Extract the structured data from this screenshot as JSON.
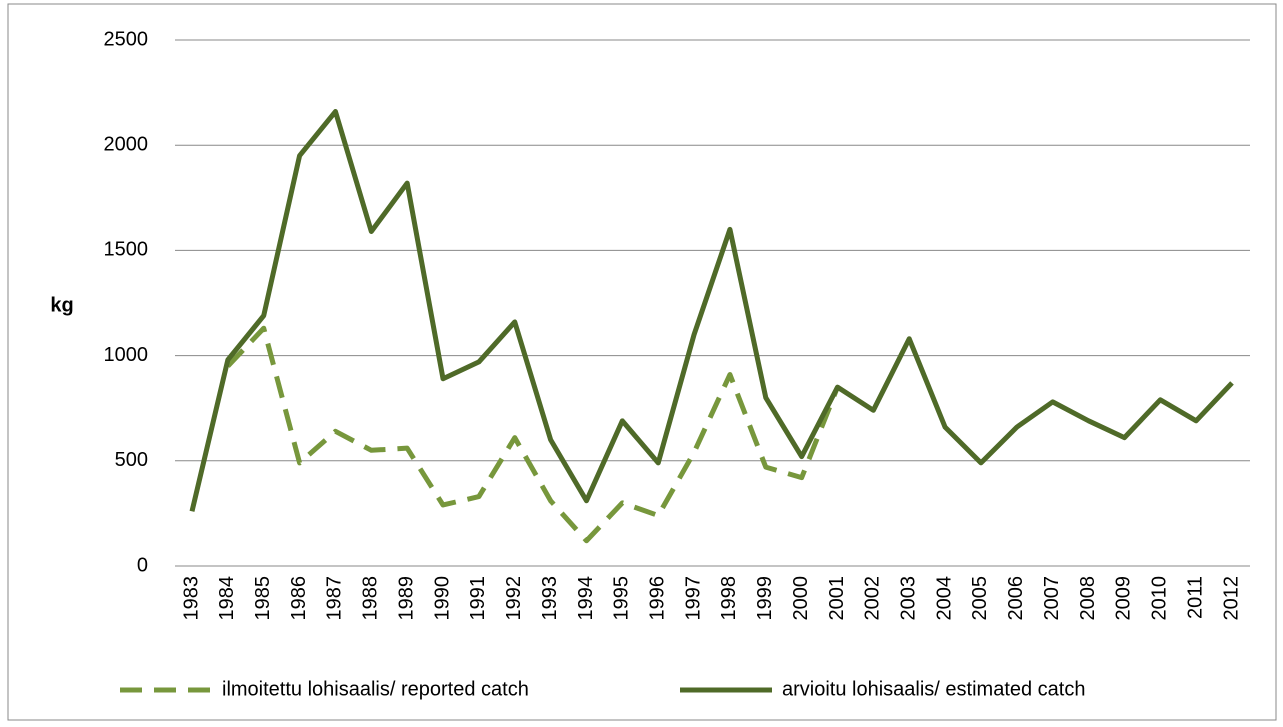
{
  "chart_data": {
    "type": "line",
    "y_label": "kg",
    "x": [
      "1983",
      "1984",
      "1985",
      "1986",
      "1987",
      "1988",
      "1989",
      "1990",
      "1991",
      "1992",
      "1993",
      "1994",
      "1995",
      "1996",
      "1997",
      "1998",
      "1999",
      "2000",
      "2001",
      "2002",
      "2003",
      "2004",
      "2005",
      "2006",
      "2007",
      "2008",
      "2009",
      "2010",
      "2011",
      "2012"
    ],
    "series": [
      {
        "name": "ilmoitettu lohisaalis/ reported catch",
        "color": "#77973c",
        "dash": true,
        "values": [
          null,
          950,
          1130,
          490,
          640,
          550,
          560,
          290,
          330,
          610,
          310,
          120,
          300,
          240,
          540,
          910,
          470,
          420,
          850,
          null,
          null,
          null,
          null,
          null,
          null,
          null,
          null,
          null,
          null,
          null
        ]
      },
      {
        "name": "arvioitu lohisaalis/ estimated catch",
        "color": "#4f6a28",
        "dash": false,
        "values": [
          260,
          980,
          1190,
          1950,
          2160,
          1590,
          1820,
          890,
          970,
          1160,
          600,
          310,
          690,
          490,
          1100,
          1600,
          800,
          520,
          850,
          740,
          1080,
          660,
          490,
          660,
          780,
          690,
          610,
          790,
          690,
          870
        ]
      }
    ],
    "ylim": [
      0,
      2500
    ],
    "yticks": [
      0,
      500,
      1000,
      1500,
      2000,
      2500
    ],
    "grid": true,
    "legend": "bottom"
  }
}
